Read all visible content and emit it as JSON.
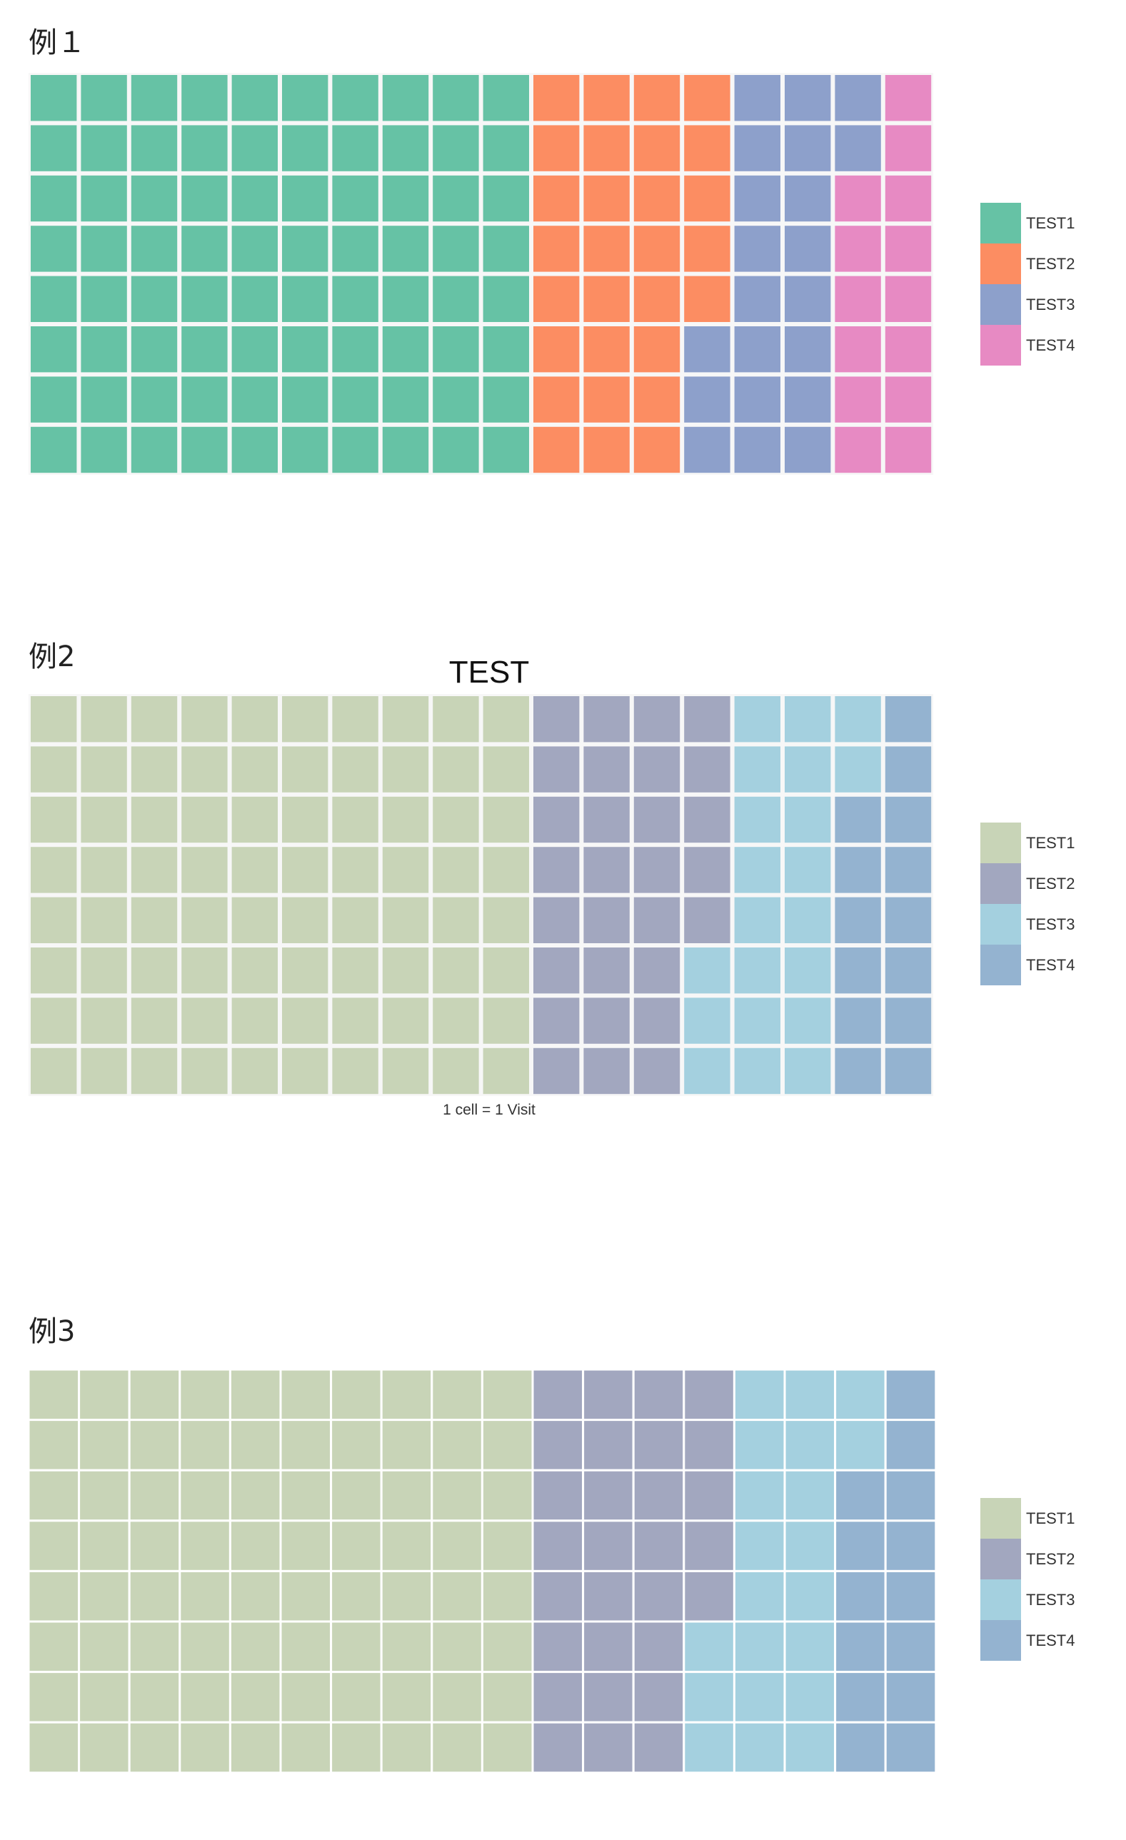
{
  "charts": [
    {
      "label": "例１",
      "chart_data": {
        "type": "waffle",
        "title": "",
        "caption": "",
        "rows": 8,
        "columns": 18,
        "series": [
          {
            "name": "TEST1",
            "value": 80,
            "color": "#66c2a5"
          },
          {
            "name": "TEST2",
            "value": 29,
            "color": "#fc8d62"
          },
          {
            "name": "TEST3",
            "value": 21,
            "color": "#8da0cb"
          },
          {
            "name": "TEST4",
            "value": 14,
            "color": "#e78ac3"
          }
        ],
        "legend_position": "right"
      }
    },
    {
      "label": "例2",
      "chart_data": {
        "type": "waffle",
        "title": "TEST",
        "caption": "1 cell = 1 Visit",
        "rows": 8,
        "columns": 18,
        "series": [
          {
            "name": "TEST1",
            "value": 80,
            "color": "#c8d4b7"
          },
          {
            "name": "TEST2",
            "value": 29,
            "color": "#a2a7bf"
          },
          {
            "name": "TEST3",
            "value": 21,
            "color": "#a4d0df"
          },
          {
            "name": "TEST4",
            "value": 14,
            "color": "#94b3d0"
          }
        ],
        "legend_position": "right"
      }
    },
    {
      "label": "例3",
      "chart_data": {
        "type": "waffle",
        "title": "",
        "caption": "",
        "rows": 8,
        "columns": 18,
        "series": [
          {
            "name": "TEST1",
            "value": 80,
            "color": "#c8d4b7"
          },
          {
            "name": "TEST2",
            "value": 29,
            "color": "#a2a7bf"
          },
          {
            "name": "TEST3",
            "value": 21,
            "color": "#a4d0df"
          },
          {
            "name": "TEST4",
            "value": 14,
            "color": "#94b3d0"
          }
        ],
        "legend_position": "right"
      }
    }
  ]
}
